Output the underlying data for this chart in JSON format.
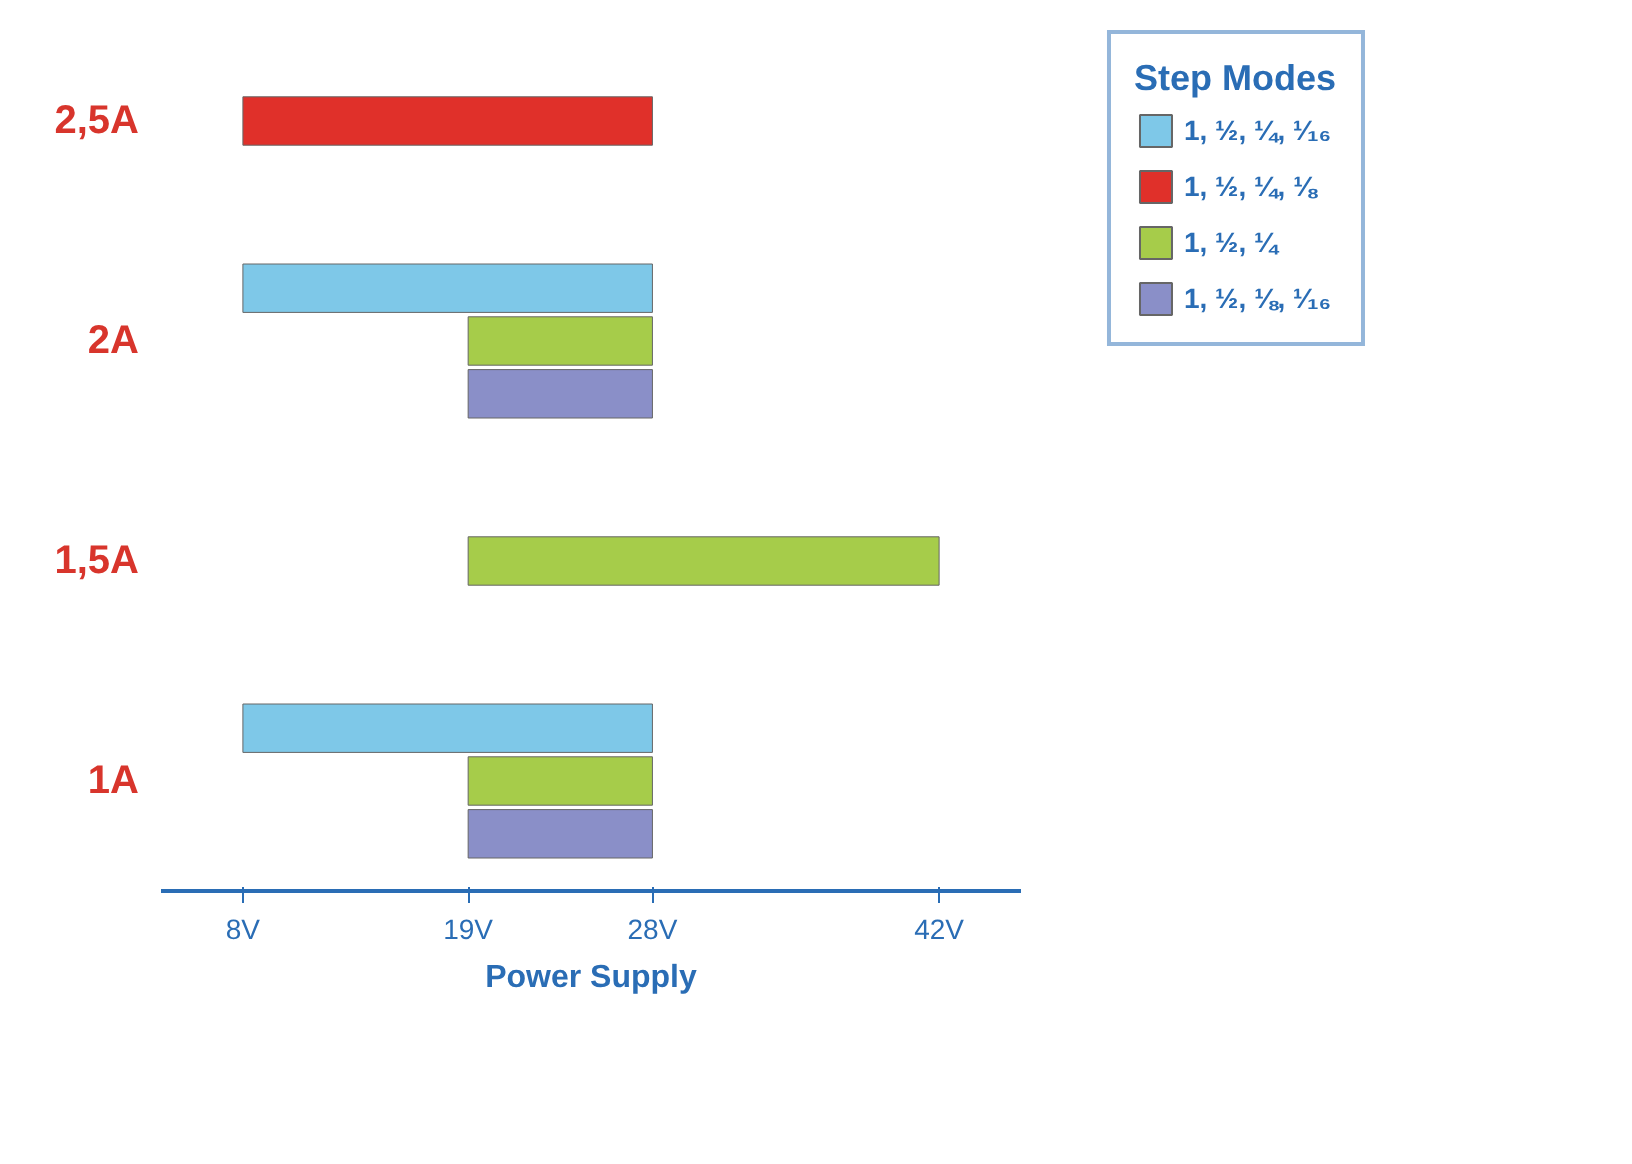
{
  "chart_data": {
    "type": "bar",
    "orientation": "horizontal",
    "categories": [
      "2,5A",
      "2A",
      "1,5A",
      "1A"
    ],
    "xlabel": "Power Supply",
    "legend_title": "Step Modes",
    "legend": "right",
    "grid": false,
    "xlim": [
      4,
      46
    ],
    "xticks": [
      {
        "value": 8,
        "label": "8V"
      },
      {
        "value": 19,
        "label": "19V"
      },
      {
        "value": 28,
        "label": "28V"
      },
      {
        "value": 42,
        "label": "42V"
      }
    ],
    "series": [
      {
        "name": "1, ½, ¼, ¹⁄₁₆",
        "color": "#7ec8e8",
        "base": [
          null,
          8,
          null,
          8
        ],
        "values": [
          null,
          20,
          null,
          20
        ]
      },
      {
        "name": "1, ½, ¼, ⅛",
        "color": "#e0302a",
        "base": [
          8,
          null,
          null,
          null
        ],
        "values": [
          20,
          null,
          null,
          null
        ]
      },
      {
        "name": "1, ½, ¼",
        "color": "#a6cc4a",
        "base": [
          null,
          19,
          19,
          19
        ],
        "values": [
          null,
          9,
          23,
          9
        ]
      },
      {
        "name": "1, ½, ⅛, ¹⁄₁₆",
        "color": "#8a8fc8",
        "base": [
          null,
          19,
          null,
          19
        ],
        "values": [
          null,
          9,
          null,
          9
        ]
      }
    ]
  }
}
